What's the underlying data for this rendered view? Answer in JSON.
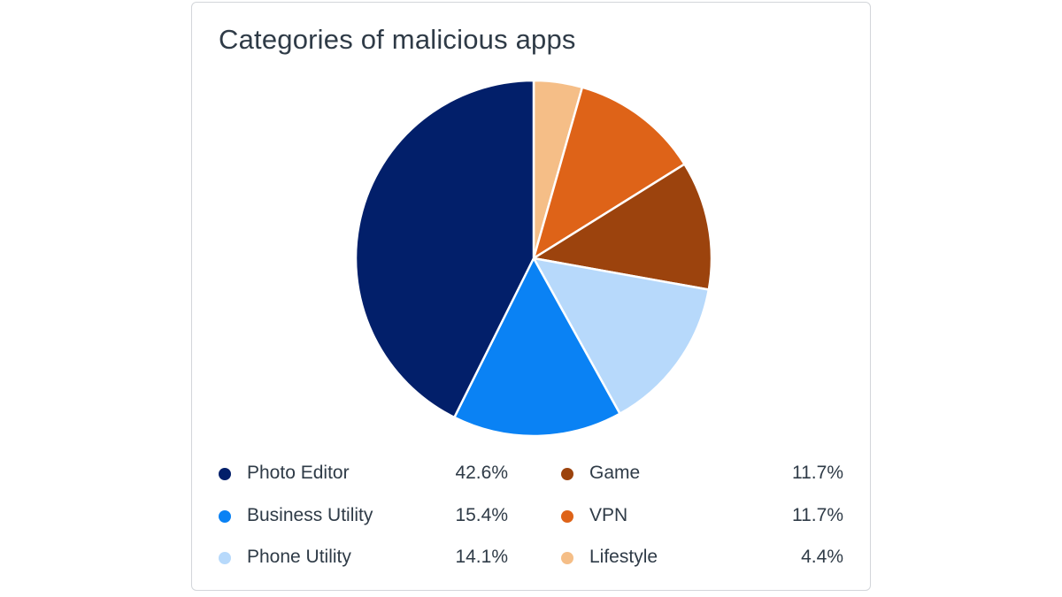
{
  "chart_data": {
    "type": "pie",
    "title": "Categories of malicious apps",
    "unit": "%",
    "slices": [
      {
        "label": "Lifestyle",
        "value": 4.4,
        "display": "4.4%",
        "color": "#f5be87"
      },
      {
        "label": "VPN",
        "value": 11.7,
        "display": "11.7%",
        "color": "#de6318"
      },
      {
        "label": "Game",
        "value": 11.7,
        "display": "11.7%",
        "color": "#9c430d"
      },
      {
        "label": "Phone Utility",
        "value": 14.1,
        "display": "14.1%",
        "color": "#b7d9fb"
      },
      {
        "label": "Business Utility",
        "value": 15.4,
        "display": "15.4%",
        "color": "#0a82f4"
      },
      {
        "label": "Photo Editor",
        "value": 42.6,
        "display": "42.6%",
        "color": "#021f6a"
      }
    ],
    "legend_placement": "bottom",
    "legend_columns": [
      [
        "Photo Editor",
        "Business Utility",
        "Phone Utility"
      ],
      [
        "Game",
        "VPN",
        "Lifestyle"
      ]
    ]
  }
}
